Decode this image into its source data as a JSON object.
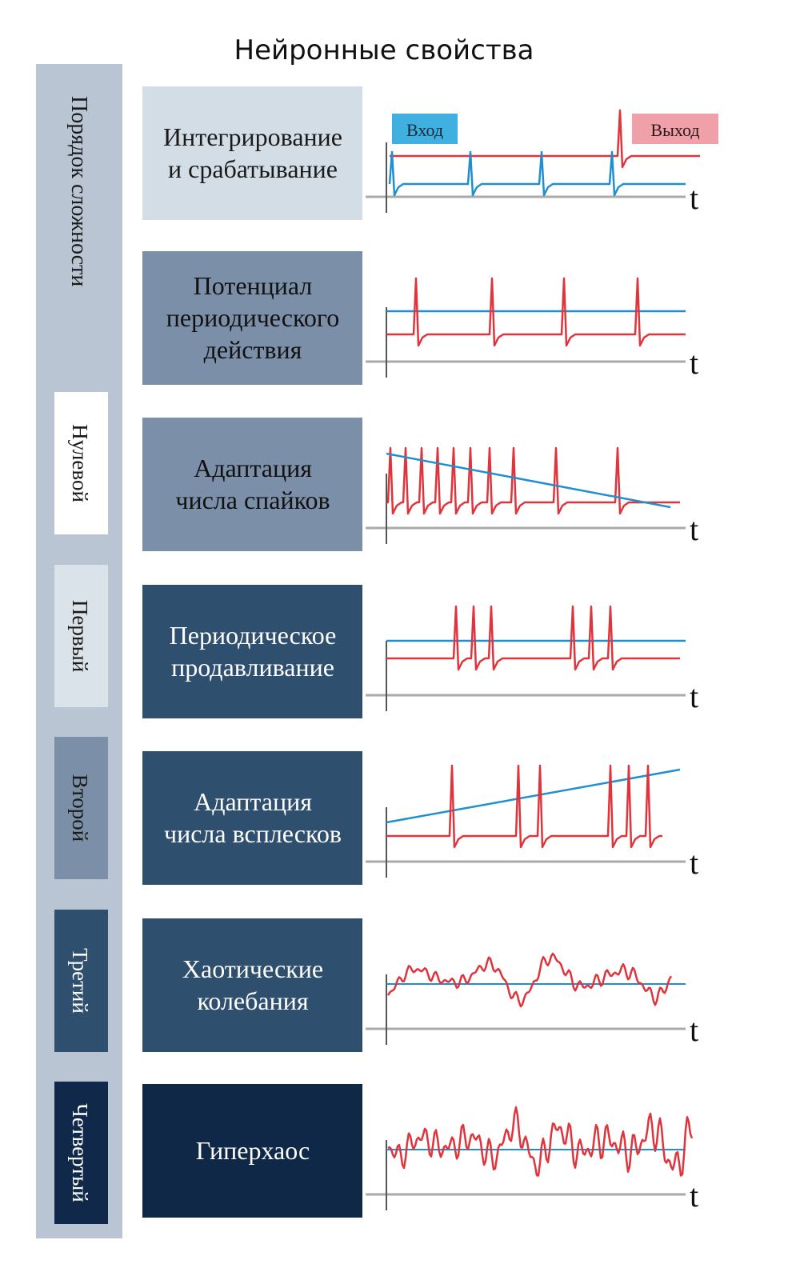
{
  "title": "Нейронные свойства",
  "axis_label": "Порядок сложности",
  "orders": [
    "Нулевой",
    "Первый",
    "Второй",
    "Третий",
    "Четвертый"
  ],
  "properties": [
    {
      "lines": [
        "Интегрирование",
        "и срабатывание"
      ]
    },
    {
      "lines": [
        "Потенциал",
        "периодического",
        "действия"
      ]
    },
    {
      "lines": [
        "Адаптация",
        "числа спайков"
      ]
    },
    {
      "lines": [
        "Периодическое",
        "продавливание"
      ]
    },
    {
      "lines": [
        "Адаптация",
        "числа всплесков"
      ]
    },
    {
      "lines": [
        "Хаотические",
        "колебания"
      ]
    },
    {
      "lines": [
        "Гиперхаос"
      ]
    }
  ],
  "legend": {
    "input": "Вход",
    "output": "Выход"
  },
  "time_label": "t"
}
